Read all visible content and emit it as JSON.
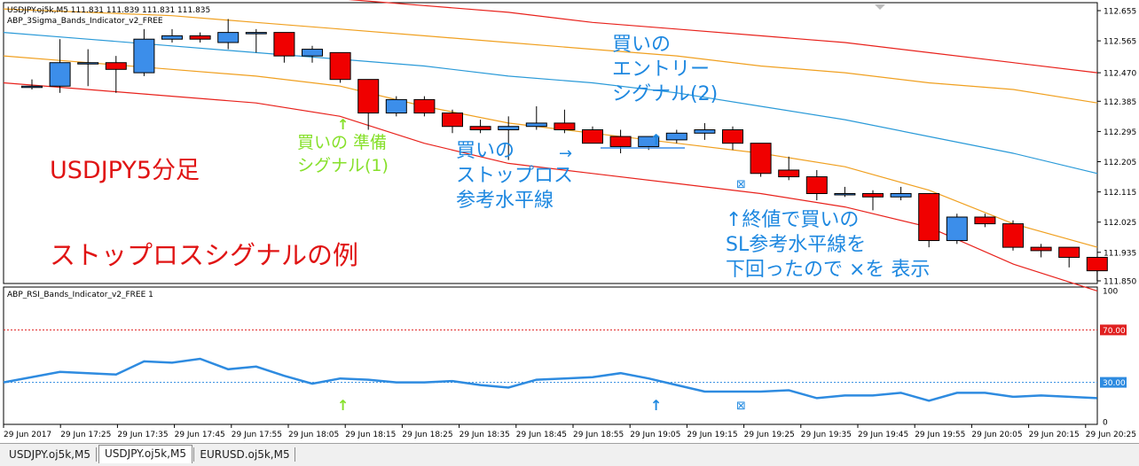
{
  "main_chart": {
    "header": "USDJPY.oj5k,M5  111.831 111.839 111.831 111.835",
    "indicator_name": "ABP_3Sigma_Bands_Indicator_v2_FREE",
    "price_ticks": [
      "112.655",
      "112.565",
      "112.470",
      "112.385",
      "112.295",
      "112.205",
      "112.115",
      "112.025",
      "111.935",
      "111.850"
    ],
    "annotations": {
      "title": "USDJPY5分足",
      "subtitle": "ストップロスシグナルの例",
      "buy_prep": [
        "買いの 準備",
        "シグナル(1)"
      ],
      "sl_line": [
        "買いの",
        "ストップロス",
        "参考水平線"
      ],
      "buy_entry": [
        "買いの",
        "エントリー",
        "シグナル(2)"
      ],
      "close_note": [
        "↑終値で買いの",
        "SL参考水平線を",
        "下回ったので ×を 表示"
      ],
      "up_arrow": "↑",
      "right_arrow": "→",
      "x_mark": "⊠"
    }
  },
  "rsi_panel": {
    "indicator_name": "ABP_RSI_Bands_Indicator_v2_FREE 1",
    "scale_ticks": [
      "100",
      "70.00",
      "30.00",
      "0"
    ]
  },
  "time_axis": [
    "29 Jun 2017",
    "29 Jun 17:25",
    "29 Jun 17:35",
    "29 Jun 17:45",
    "29 Jun 17:55",
    "29 Jun 18:05",
    "29 Jun 18:15",
    "29 Jun 18:25",
    "29 Jun 18:35",
    "29 Jun 18:45",
    "29 Jun 18:55",
    "29 Jun 19:05",
    "29 Jun 19:15",
    "29 Jun 19:25",
    "29 Jun 19:35",
    "29 Jun 19:45",
    "29 Jun 19:55",
    "29 Jun 20:05",
    "29 Jun 20:15",
    "29 Jun 20:25"
  ],
  "tabs": [
    {
      "label": "USDJPY.oj5k,M5",
      "active": false
    },
    {
      "label": "USDJPY.oj5k,M5",
      "active": true
    },
    {
      "label": "EURUSD.oj5k,M5",
      "active": false
    }
  ],
  "colors": {
    "bull": "#3c8eea",
    "bear": "#f00000",
    "band_outer": "#e8221c",
    "band_mid": "#f0a020",
    "band_inner": "#2a9ad8",
    "rsi": "#2e8be0",
    "annotation_green": "#86e02a",
    "annotation_red": "#e01414",
    "annotation_blue": "#1e88e0"
  },
  "chart_data": [
    {
      "type": "candlestick",
      "title": "USDJPY.oj5k,M5",
      "timeframe": "M5",
      "ylim": [
        111.85,
        112.655
      ],
      "candles": [
        {
          "o": 112.43,
          "h": 112.45,
          "l": 112.42,
          "c": 112.43
        },
        {
          "o": 112.43,
          "h": 112.57,
          "l": 112.41,
          "c": 112.5
        },
        {
          "o": 112.5,
          "h": 112.54,
          "l": 112.43,
          "c": 112.5
        },
        {
          "o": 112.5,
          "h": 112.52,
          "l": 112.41,
          "c": 112.48
        },
        {
          "o": 112.47,
          "h": 112.6,
          "l": 112.46,
          "c": 112.57
        },
        {
          "o": 112.57,
          "h": 112.6,
          "l": 112.56,
          "c": 112.58
        },
        {
          "o": 112.58,
          "h": 112.59,
          "l": 112.56,
          "c": 112.57
        },
        {
          "o": 112.56,
          "h": 112.63,
          "l": 112.54,
          "c": 112.59
        },
        {
          "o": 112.59,
          "h": 112.6,
          "l": 112.53,
          "c": 112.59
        },
        {
          "o": 112.59,
          "h": 112.59,
          "l": 112.5,
          "c": 112.52
        },
        {
          "o": 112.52,
          "h": 112.55,
          "l": 112.5,
          "c": 112.54
        },
        {
          "o": 112.53,
          "h": 112.53,
          "l": 112.44,
          "c": 112.45
        },
        {
          "o": 112.45,
          "h": 112.45,
          "l": 112.3,
          "c": 112.35
        },
        {
          "o": 112.35,
          "h": 112.4,
          "l": 112.34,
          "c": 112.39
        },
        {
          "o": 112.39,
          "h": 112.4,
          "l": 112.34,
          "c": 112.35
        },
        {
          "o": 112.35,
          "h": 112.36,
          "l": 112.29,
          "c": 112.31
        },
        {
          "o": 112.31,
          "h": 112.33,
          "l": 112.29,
          "c": 112.3
        },
        {
          "o": 112.3,
          "h": 112.34,
          "l": 112.21,
          "c": 112.31
        },
        {
          "o": 112.31,
          "h": 112.37,
          "l": 112.3,
          "c": 112.32
        },
        {
          "o": 112.32,
          "h": 112.36,
          "l": 112.29,
          "c": 112.3
        },
        {
          "o": 112.3,
          "h": 112.31,
          "l": 112.26,
          "c": 112.26
        },
        {
          "o": 112.28,
          "h": 112.3,
          "l": 112.23,
          "c": 112.25
        },
        {
          "o": 112.25,
          "h": 112.28,
          "l": 112.24,
          "c": 112.28
        },
        {
          "o": 112.27,
          "h": 112.3,
          "l": 112.26,
          "c": 112.29
        },
        {
          "o": 112.29,
          "h": 112.32,
          "l": 112.27,
          "c": 112.3
        },
        {
          "o": 112.3,
          "h": 112.31,
          "l": 112.24,
          "c": 112.26
        },
        {
          "o": 112.26,
          "h": 112.26,
          "l": 112.16,
          "c": 112.17
        },
        {
          "o": 112.18,
          "h": 112.22,
          "l": 112.15,
          "c": 112.16
        },
        {
          "o": 112.16,
          "h": 112.18,
          "l": 112.09,
          "c": 112.11
        },
        {
          "o": 112.11,
          "h": 112.13,
          "l": 112.1,
          "c": 112.11
        },
        {
          "o": 112.11,
          "h": 112.12,
          "l": 112.06,
          "c": 112.1
        },
        {
          "o": 112.1,
          "h": 112.13,
          "l": 112.09,
          "c": 112.11
        },
        {
          "o": 112.11,
          "h": 112.11,
          "l": 111.95,
          "c": 111.97
        },
        {
          "o": 111.97,
          "h": 112.05,
          "l": 111.96,
          "c": 112.04
        },
        {
          "o": 112.04,
          "h": 112.05,
          "l": 112.01,
          "c": 112.02
        },
        {
          "o": 112.02,
          "h": 112.03,
          "l": 111.94,
          "c": 111.95
        },
        {
          "o": 111.95,
          "h": 111.96,
          "l": 111.92,
          "c": 111.94
        },
        {
          "o": 111.95,
          "h": 111.95,
          "l": 111.89,
          "c": 111.92
        },
        {
          "o": 111.92,
          "h": 111.92,
          "l": 111.85,
          "c": 111.88
        }
      ],
      "bands": [
        {
          "name": "+3σ",
          "values": [
            112.75,
            112.74,
            112.73,
            112.71,
            112.69,
            112.67,
            112.65,
            112.62,
            112.6,
            112.58,
            112.56,
            112.53,
            112.5,
            112.47
          ]
        },
        {
          "name": "+2σ",
          "values": [
            112.66,
            112.65,
            112.64,
            112.62,
            112.6,
            112.58,
            112.56,
            112.54,
            112.52,
            112.49,
            112.47,
            112.44,
            112.42,
            112.38
          ]
        },
        {
          "name": "+1σ",
          "values": [
            112.59,
            112.57,
            112.55,
            112.53,
            112.51,
            112.49,
            112.46,
            112.44,
            112.41,
            112.37,
            112.33,
            112.28,
            112.23,
            112.17
          ]
        },
        {
          "name": "-1σ",
          "values": [
            112.52,
            112.5,
            112.48,
            112.46,
            112.43,
            112.37,
            112.32,
            112.29,
            112.26,
            112.23,
            112.19,
            112.12,
            112.02,
            111.95
          ]
        },
        {
          "name": "-2σ",
          "values": [
            112.44,
            112.42,
            112.4,
            112.38,
            112.34,
            112.26,
            112.2,
            112.17,
            112.14,
            112.11,
            112.07,
            112.01,
            111.9,
            111.82
          ]
        }
      ],
      "sl_line_level": 112.25
    },
    {
      "type": "line",
      "title": "ABP_RSI_Bands_Indicator_v2_FREE 1",
      "ylim": [
        0,
        100
      ],
      "levels": [
        70,
        30
      ],
      "series": [
        {
          "values": [
            30,
            38,
            37,
            36,
            46,
            45,
            48,
            40,
            42,
            35,
            29,
            33,
            32,
            30,
            30,
            31,
            28,
            26,
            32,
            33,
            34,
            37,
            33,
            28,
            23,
            23,
            23,
            24,
            18,
            20,
            20,
            22,
            16,
            22,
            22,
            19,
            20,
            19,
            18
          ]
        }
      ]
    }
  ]
}
